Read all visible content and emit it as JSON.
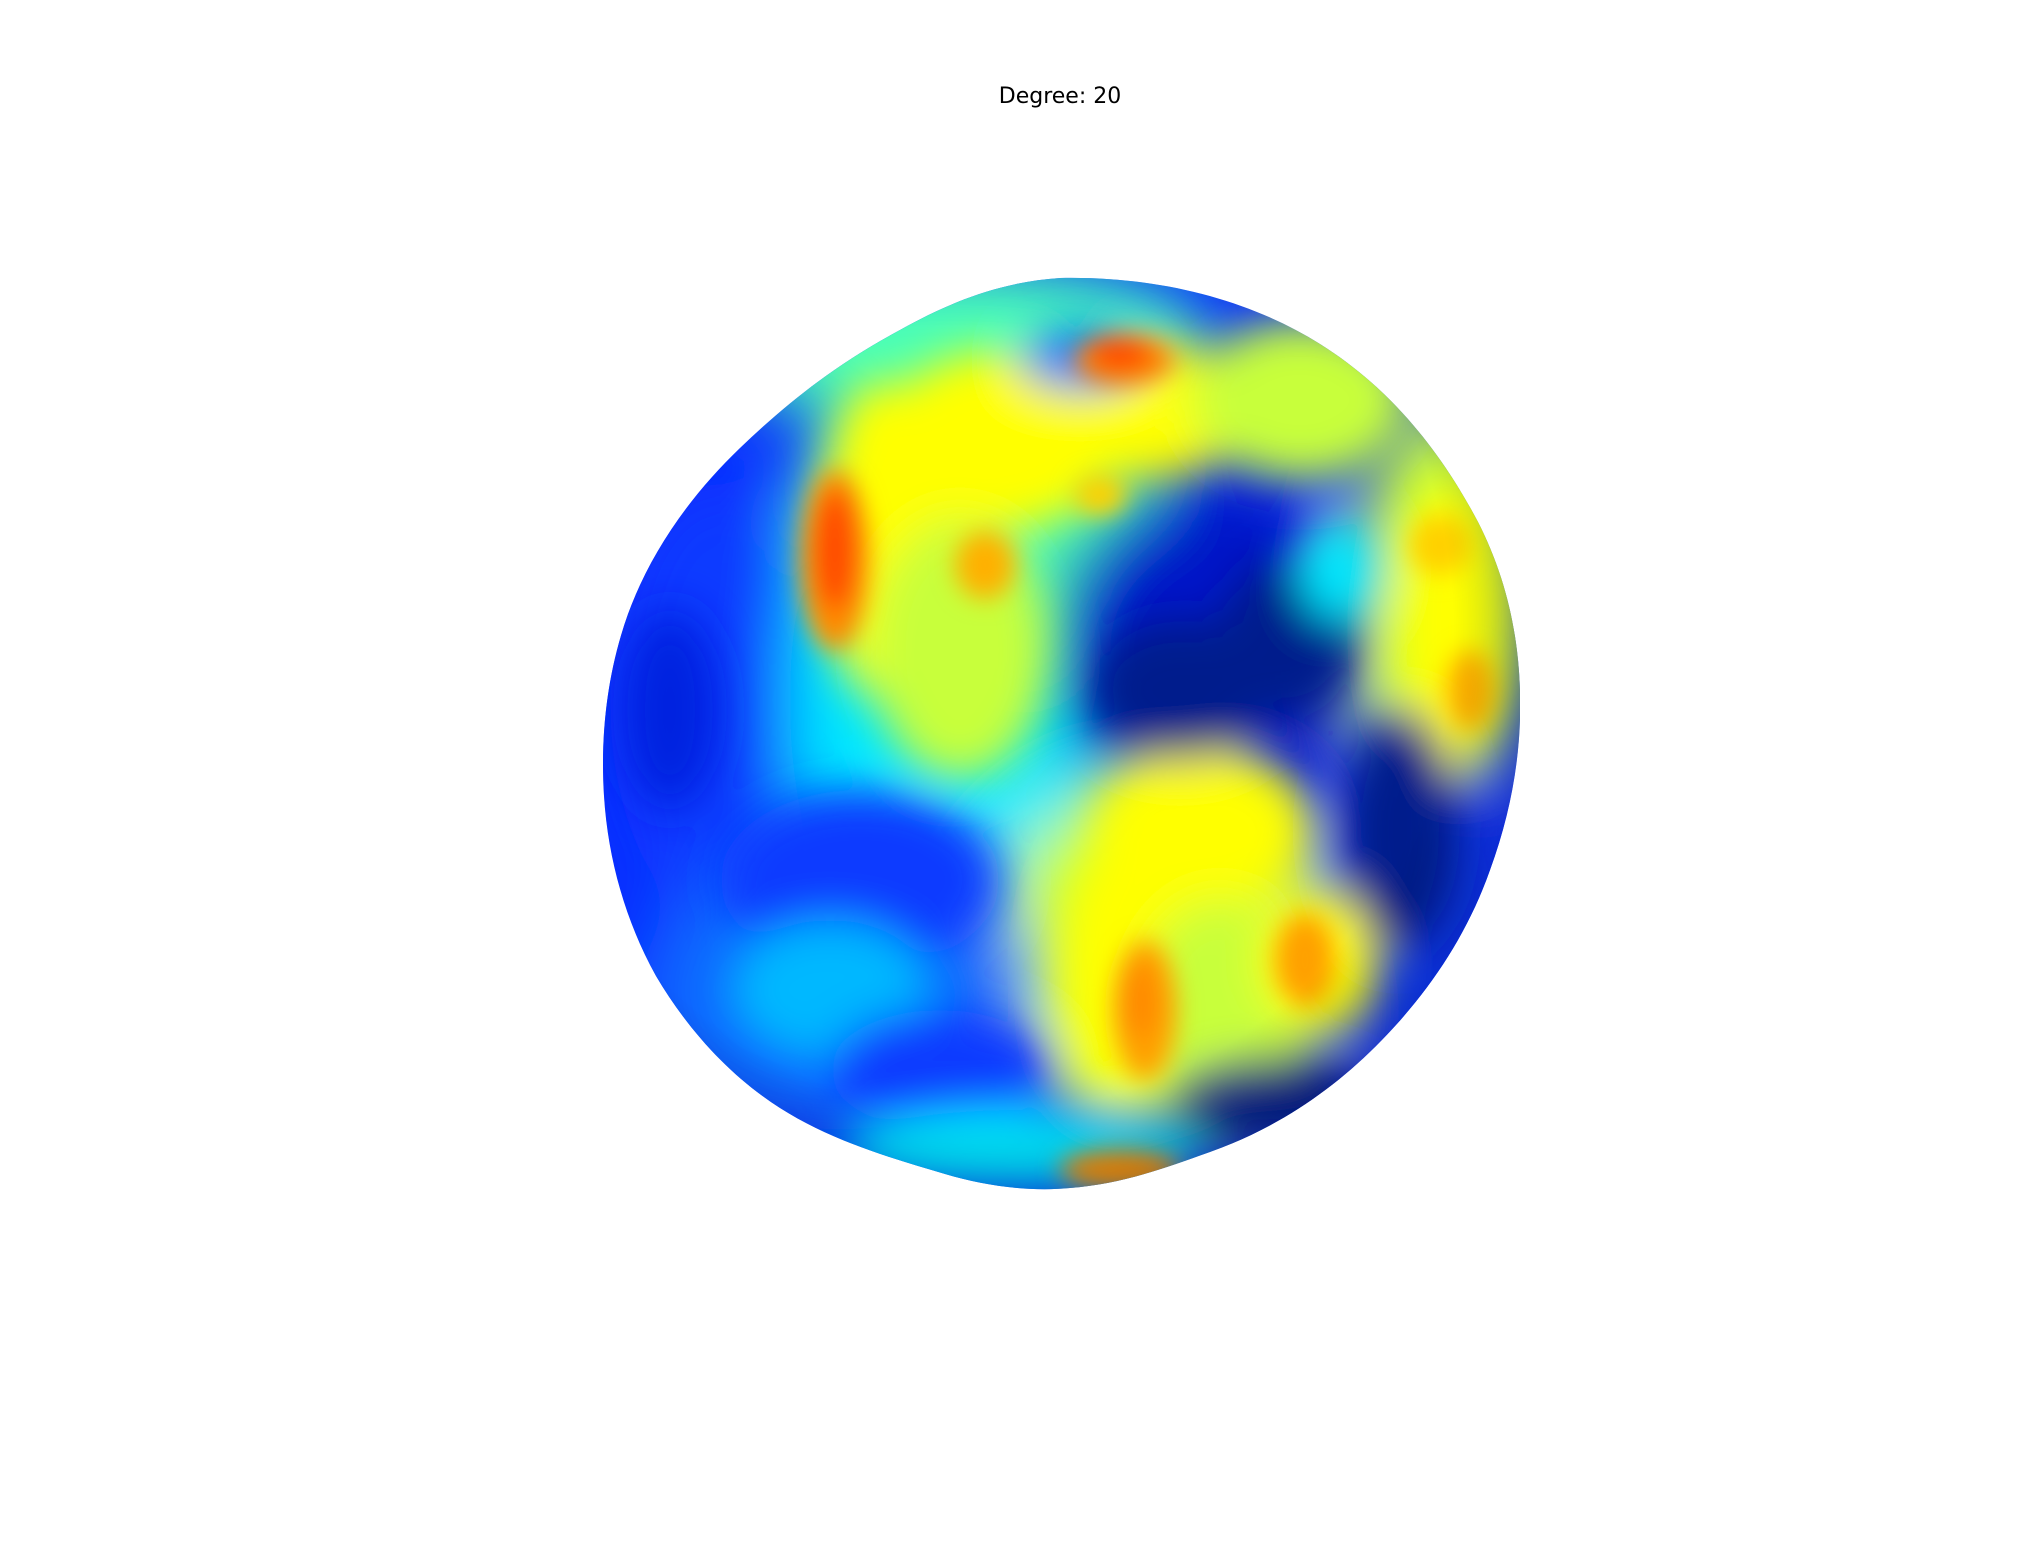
{
  "figure": {
    "title": "Degree: 20"
  },
  "sphere": {
    "colormap": "jet",
    "colors": {
      "dark_blue": "#001a8c",
      "blue": "#0a2cff",
      "mid_blue": "#0a6cff",
      "cyan": "#00e8ff",
      "aqua_green": "#48ffb8",
      "yellow_green": "#c8ff3a",
      "yellow": "#ffff00",
      "orange": "#ffa000",
      "red_orange": "#ff4a00"
    }
  }
}
